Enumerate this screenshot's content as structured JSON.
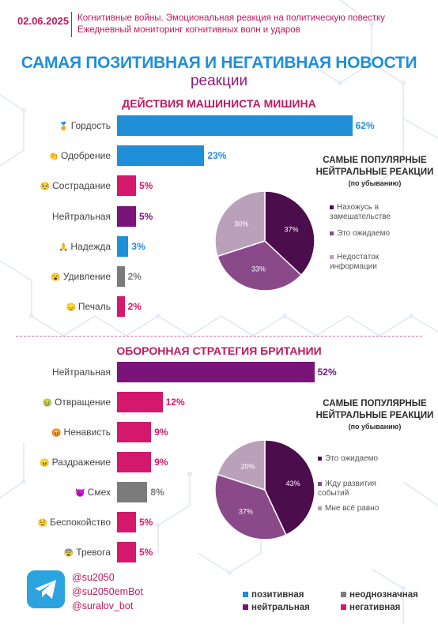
{
  "header": {
    "date": "02.06.2025",
    "line1": "Когнитивные войны. Эмоциональная реакция на политическую повестку",
    "line2": "Ежедневный мониторинг когнитивных волн и ударов"
  },
  "title": {
    "main": "САМАЯ ПОЗИТИВНАЯ И НЕГАТИВНАЯ НОВОСТИ",
    "sub": "реакции"
  },
  "colors": {
    "positive": "#1f8fd8",
    "neutral": "#7a137a",
    "ambiguous": "#7b7b7b",
    "negative": "#d4186c",
    "pie1": "#4c0d4c",
    "pie2": "#8a4a8a",
    "pie3": "#b9a2b9"
  },
  "chart_data": [
    {
      "type": "bar",
      "title": "ДЕЙСТВИЯ МАШИНИСТА МИШИНА",
      "bars": [
        {
          "label": "Гордость",
          "emoji": "🏅",
          "value": 62,
          "value_label": "62%",
          "category": "positive"
        },
        {
          "label": "Одобрение",
          "emoji": "👏",
          "value": 23,
          "value_label": "23%",
          "category": "positive"
        },
        {
          "label": "Сострадание",
          "emoji": "🥺",
          "value": 5,
          "value_label": "5%",
          "category": "negative"
        },
        {
          "label": "Нейтральная",
          "emoji": "",
          "value": 5,
          "value_label": "5%",
          "category": "neutral"
        },
        {
          "label": "Надежда",
          "emoji": "🙏",
          "value": 3,
          "value_label": "3%",
          "category": "positive"
        },
        {
          "label": "Удивление",
          "emoji": "😮",
          "value": 2,
          "value_label": "2%",
          "category": "ambiguous"
        },
        {
          "label": "Печаль",
          "emoji": "😞",
          "value": 2,
          "value_label": "2%",
          "category": "negative"
        }
      ]
    },
    {
      "type": "pie",
      "title": "САМЫЕ ПОПУЛЯРНЫЕ НЕЙТРАЛЬНЫЕ РЕАКЦИИ",
      "subtitle": "(по убыванию)",
      "slices": [
        {
          "label": "Нахожусь в замешательстве",
          "value": 37,
          "value_label": "37%"
        },
        {
          "label": "Это ожидаемо",
          "value": 33,
          "value_label": "33%"
        },
        {
          "label": "Недостаток информации",
          "value": 30,
          "value_label": "30%"
        }
      ]
    },
    {
      "type": "bar",
      "title": "ОБОРОННАЯ СТРАТЕГИЯ БРИТАНИИ",
      "bars": [
        {
          "label": "Нейтральная",
          "emoji": "",
          "value": 52,
          "value_label": "52%",
          "category": "neutral"
        },
        {
          "label": "Отвращение",
          "emoji": "🤢",
          "value": 12,
          "value_label": "12%",
          "category": "negative"
        },
        {
          "label": "Ненависть",
          "emoji": "😡",
          "value": 9,
          "value_label": "9%",
          "category": "negative"
        },
        {
          "label": "Раздражение",
          "emoji": "😠",
          "value": 9,
          "value_label": "9%",
          "category": "negative"
        },
        {
          "label": "Смех",
          "emoji": "😈",
          "value": 8,
          "value_label": "8%",
          "category": "ambiguous"
        },
        {
          "label": "Беспокойство",
          "emoji": "😟",
          "value": 5,
          "value_label": "5%",
          "category": "negative"
        },
        {
          "label": "Тревога",
          "emoji": "😨",
          "value": 5,
          "value_label": "5%",
          "category": "negative"
        }
      ]
    },
    {
      "type": "pie",
      "title": "САМЫЕ ПОПУЛЯРНЫЕ НЕЙТРАЛЬНЫЕ РЕАКЦИИ",
      "subtitle": "(по убыванию)",
      "slices": [
        {
          "label": "Это ожидаемо",
          "value": 43,
          "value_label": "43%"
        },
        {
          "label": "Жду развития событий",
          "value": 37,
          "value_label": "37%"
        },
        {
          "label": "Мне всё равно",
          "value": 20,
          "value_label": "20%"
        }
      ]
    }
  ],
  "footer": {
    "logo_icon": "telegram-icon",
    "handles": [
      "@su2050",
      "@su2050emBot",
      "@suralov_bot"
    ],
    "legend": [
      {
        "label": "позитивная",
        "category": "positive"
      },
      {
        "label": "неоднозначная",
        "category": "ambiguous"
      },
      {
        "label": "нейтральная",
        "category": "neutral"
      },
      {
        "label": "негативная",
        "category": "negative"
      }
    ]
  }
}
